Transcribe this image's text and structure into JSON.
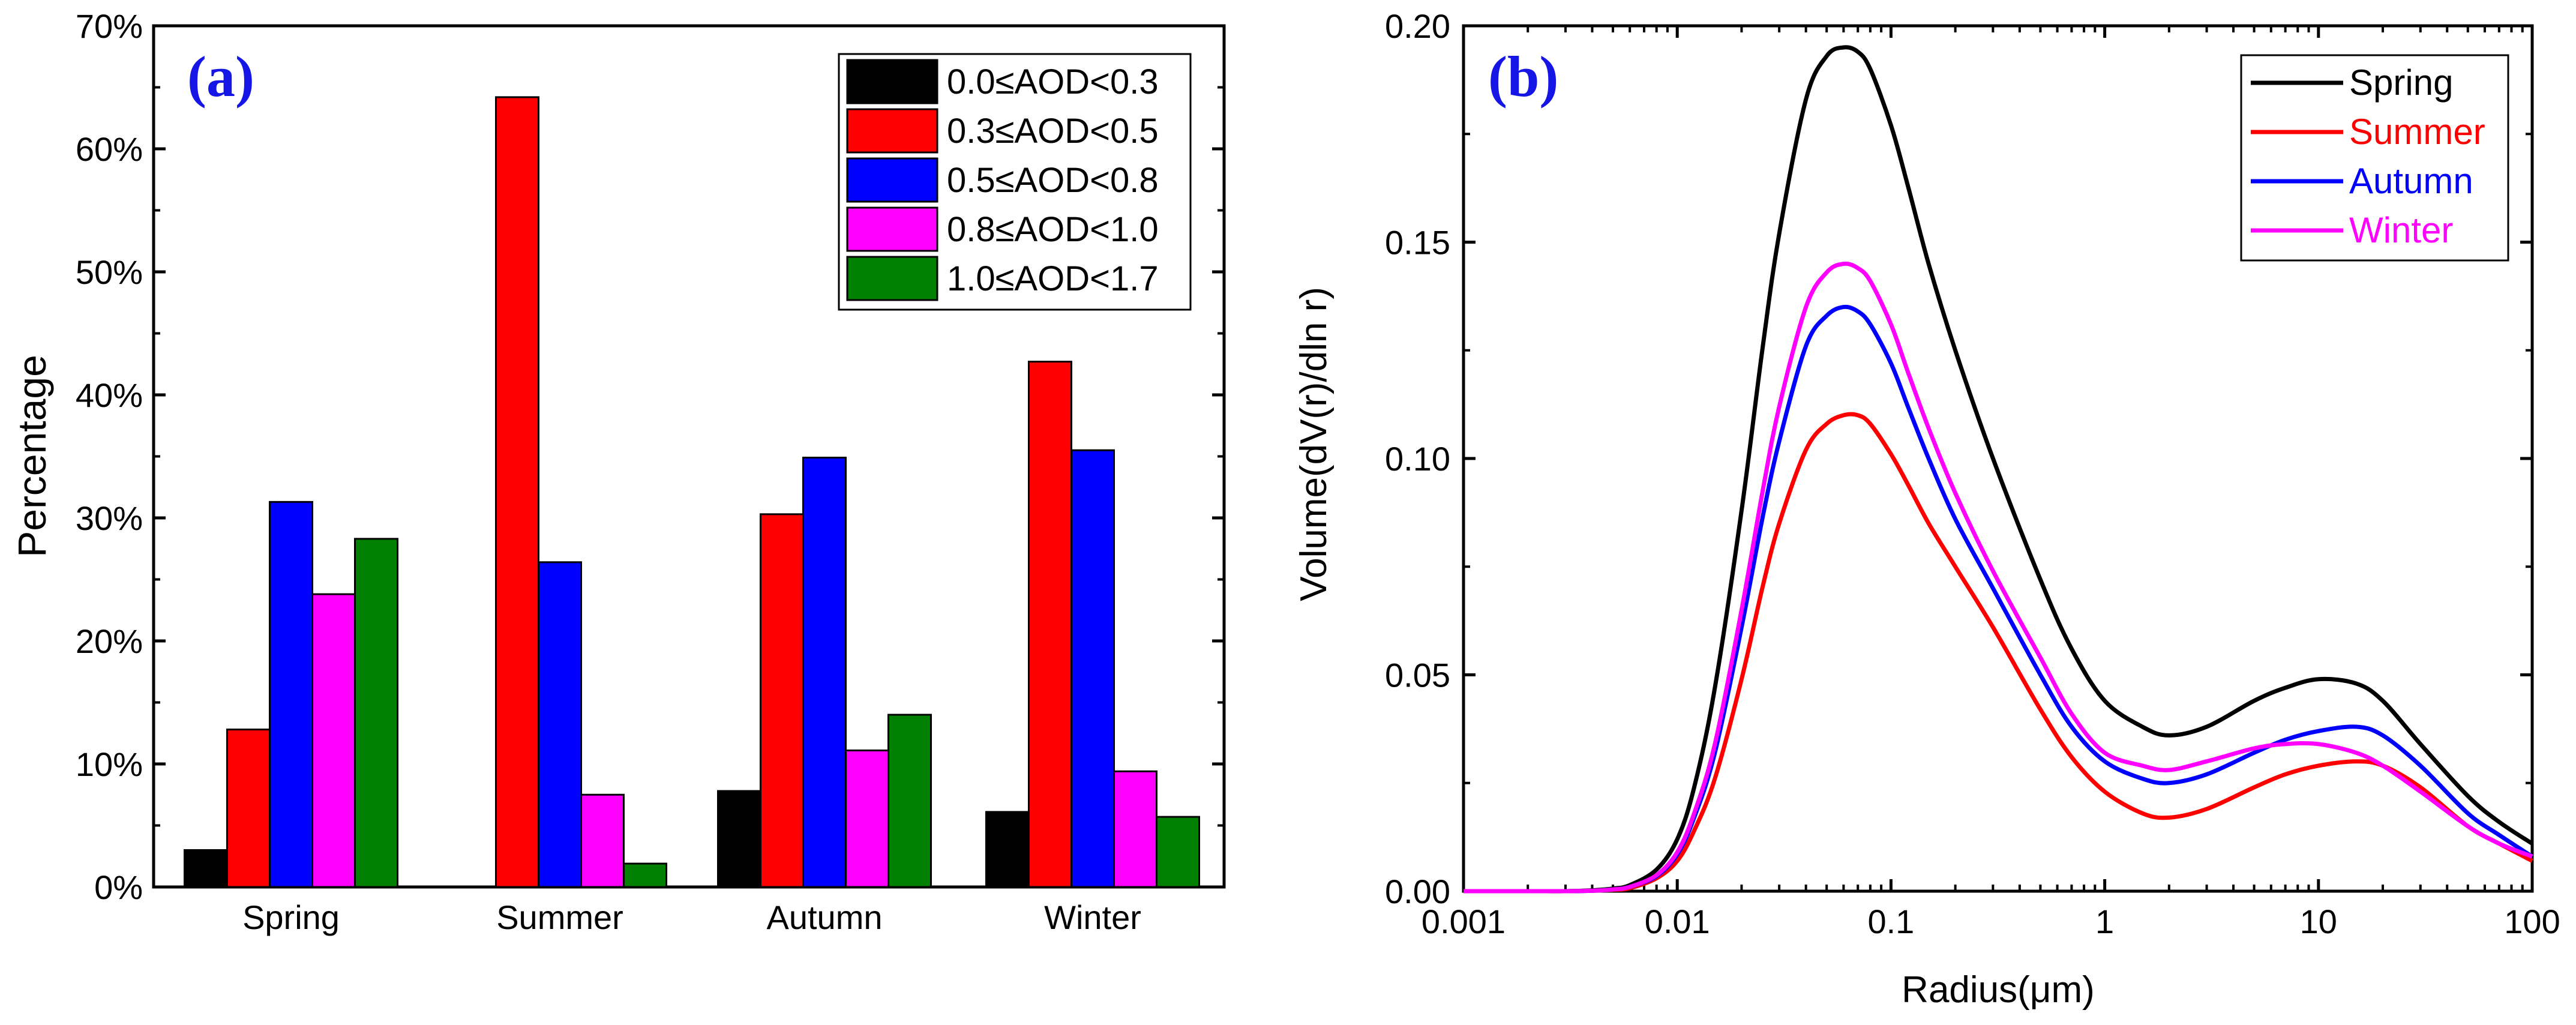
{
  "chart_data": [
    {
      "panel": "(a)",
      "type": "bar",
      "ylabel": "Percentage",
      "xlabel": "",
      "ylim": [
        0,
        70
      ],
      "yticks": [
        "0%",
        "10%",
        "20%",
        "30%",
        "40%",
        "50%",
        "60%",
        "70%"
      ],
      "categories": [
        "Spring",
        "Summer",
        "Autumn",
        "Winter"
      ],
      "legend_position": "top-right",
      "series": [
        {
          "name": "0.0≤AOD<0.3",
          "color": "#000000",
          "values": [
            3.0,
            0.0,
            7.8,
            6.1
          ]
        },
        {
          "name": "0.3≤AOD<0.5",
          "color": "#ff0000",
          "values": [
            12.8,
            64.2,
            30.3,
            42.7
          ]
        },
        {
          "name": "0.5≤AOD<0.8",
          "color": "#0000ff",
          "values": [
            31.3,
            26.4,
            34.9,
            35.5
          ]
        },
        {
          "name": "0.8≤AOD<1.0",
          "color": "#ff00ff",
          "values": [
            23.8,
            7.5,
            11.1,
            9.4
          ]
        },
        {
          "name": "1.0≤AOD<1.7",
          "color": "#008000",
          "values": [
            28.3,
            1.9,
            14.0,
            5.7
          ]
        }
      ]
    },
    {
      "panel": "(b)",
      "type": "line",
      "xlabel": "Radius(μm)",
      "ylabel": "Volume(dV(r)/dln r)",
      "xscale": "log",
      "xlim": [
        0.001,
        100
      ],
      "ylim": [
        0,
        0.2
      ],
      "xticks": [
        "0.001",
        "0.01",
        "0.1",
        "1",
        "10",
        "100"
      ],
      "yticks": [
        "0.00",
        "0.05",
        "0.10",
        "0.15",
        "0.20"
      ],
      "legend_position": "top-right",
      "x": [
        0.001,
        0.002,
        0.003,
        0.004,
        0.005,
        0.006,
        0.008,
        0.01,
        0.012,
        0.015,
        0.02,
        0.025,
        0.03,
        0.04,
        0.05,
        0.06,
        0.07,
        0.08,
        0.1,
        0.12,
        0.15,
        0.2,
        0.3,
        0.5,
        0.7,
        1,
        1.5,
        2,
        3,
        5,
        7,
        10,
        15,
        20,
        30,
        50,
        70,
        100
      ],
      "series": [
        {
          "name": "Spring",
          "color": "#000000",
          "values": [
            0,
            0,
            0,
            0.0002,
            0.0006,
            0.0014,
            0.005,
            0.012,
            0.024,
            0.047,
            0.088,
            0.125,
            0.152,
            0.183,
            0.193,
            0.195,
            0.194,
            0.19,
            0.177,
            0.163,
            0.145,
            0.125,
            0.1,
            0.072,
            0.056,
            0.044,
            0.038,
            0.036,
            0.038,
            0.044,
            0.047,
            0.049,
            0.048,
            0.044,
            0.034,
            0.022,
            0.016,
            0.011
          ]
        },
        {
          "name": "Summer",
          "color": "#ff0000",
          "values": [
            0,
            0,
            0,
            0.0001,
            0.0003,
            0.0007,
            0.003,
            0.007,
            0.014,
            0.026,
            0.049,
            0.07,
            0.085,
            0.102,
            0.108,
            0.11,
            0.11,
            0.108,
            0.101,
            0.094,
            0.085,
            0.075,
            0.061,
            0.042,
            0.031,
            0.023,
            0.018,
            0.017,
            0.019,
            0.024,
            0.027,
            0.029,
            0.03,
            0.029,
            0.024,
            0.015,
            0.011,
            0.007
          ]
        },
        {
          "name": "Autumn",
          "color": "#0000ff",
          "values": [
            0,
            0,
            0,
            0.0001,
            0.0004,
            0.001,
            0.0035,
            0.0085,
            0.017,
            0.032,
            0.061,
            0.086,
            0.104,
            0.126,
            0.133,
            0.135,
            0.134,
            0.131,
            0.122,
            0.112,
            0.1,
            0.086,
            0.07,
            0.05,
            0.038,
            0.03,
            0.026,
            0.025,
            0.027,
            0.032,
            0.035,
            0.037,
            0.038,
            0.036,
            0.029,
            0.018,
            0.013,
            0.008
          ]
        },
        {
          "name": "Winter",
          "color": "#ff00ff",
          "values": [
            0,
            0,
            0,
            0.0001,
            0.0004,
            0.001,
            0.0037,
            0.009,
            0.018,
            0.034,
            0.065,
            0.092,
            0.112,
            0.135,
            0.143,
            0.145,
            0.144,
            0.141,
            0.131,
            0.12,
            0.107,
            0.092,
            0.074,
            0.054,
            0.041,
            0.032,
            0.029,
            0.028,
            0.03,
            0.033,
            0.034,
            0.034,
            0.032,
            0.029,
            0.023,
            0.015,
            0.011,
            0.008
          ]
        }
      ]
    }
  ]
}
